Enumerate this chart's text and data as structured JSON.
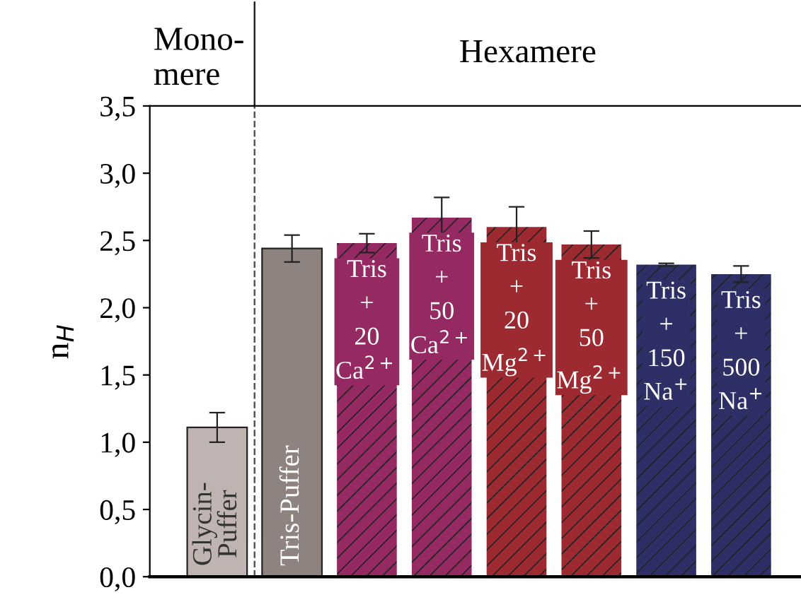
{
  "chart_data": {
    "type": "bar",
    "ylabel": "n$_{H}$",
    "categories": [
      "Glycin-\nPuffer",
      "Tris-Puffer",
      "Tris\n+\n20\nCa$^{2+}$",
      "Tris\n+\n50\nCa$^{2+}$",
      "Tris\n+\n20\nMg$^{2+}$",
      "Tris\n+\n50\nMg$^{2+}$",
      "Tris\n+\n150\nNa$^{+}$",
      "Tris\n+\n500\nNa$^{+}$"
    ],
    "values": [
      1.11,
      2.44,
      2.48,
      2.67,
      2.6,
      2.47,
      2.32,
      2.25
    ],
    "errors": [
      0.11,
      0.1,
      0.07,
      0.15,
      0.15,
      0.1,
      0.01,
      0.06
    ],
    "colors": [
      "#c0b4b2",
      "#8f8380",
      "#952a63",
      "#952a63",
      "#9c2a30",
      "#9c2a30",
      "#2d2f66",
      "#2d2f66"
    ],
    "ylim": [
      0,
      3.5
    ],
    "yticks": [
      {
        "value": 0,
        "label": "0,0"
      },
      {
        "value": 0.5,
        "label": "0,5"
      },
      {
        "value": 1,
        "label": "1,0"
      },
      {
        "value": 1.5,
        "label": "1,5"
      },
      {
        "value": 2,
        "label": "2,0"
      },
      {
        "value": 2.5,
        "label": "2,5"
      },
      {
        "value": 3,
        "label": "3,0"
      },
      {
        "value": 3.5,
        "label": "3,5"
      }
    ],
    "annotations": [
      "Mono-\nmere",
      "Hexamere"
    ],
    "grid": false
  }
}
